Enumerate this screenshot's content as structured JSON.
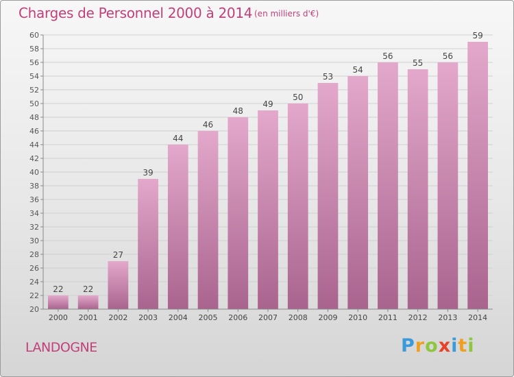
{
  "title": "Charges de Personnel 2000 à 2014",
  "subtitle": "(en milliers d'€)",
  "commune": "LANDOGNE",
  "logo": {
    "letters": [
      "P",
      "r",
      "o",
      "x",
      "i",
      "t",
      "i"
    ],
    "colors": [
      "#3b9ad9",
      "#f0a020",
      "#8fc640",
      "#e8402a",
      "#3b9ad9",
      "#f0a020",
      "#8fc640"
    ]
  },
  "colors": {
    "bar_top": "#e3a8cb",
    "bar_bottom": "#a9648e",
    "text": "#c2407a"
  },
  "chart_data": {
    "type": "bar",
    "categories": [
      "2000",
      "2001",
      "2002",
      "2003",
      "2004",
      "2005",
      "2006",
      "2007",
      "2008",
      "2009",
      "2010",
      "2011",
      "2012",
      "2013",
      "2014"
    ],
    "values": [
      22,
      22,
      27,
      39,
      44,
      46,
      48,
      49,
      50,
      53,
      54,
      56,
      55,
      56,
      59
    ],
    "ylim": [
      20,
      60
    ],
    "yticks": [
      20,
      22,
      24,
      26,
      28,
      30,
      32,
      34,
      36,
      38,
      40,
      42,
      44,
      46,
      48,
      50,
      52,
      54,
      56,
      58,
      60
    ],
    "grid": true
  }
}
